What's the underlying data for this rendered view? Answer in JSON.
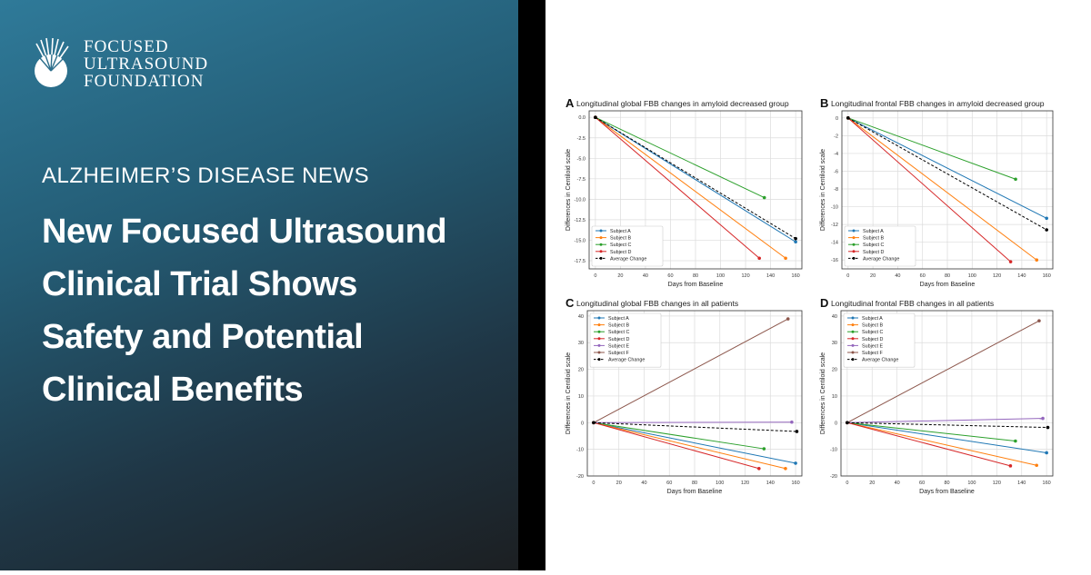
{
  "brand": {
    "line1": "Focused",
    "line2": "Ultrasound",
    "line3": "Foundation"
  },
  "kicker": "ALZHEIMER’S DISEASE NEWS",
  "headline": [
    "New Focused Ultrasound",
    "Clinical Trial Shows",
    "Safety and Potential",
    "Clinical Benefits"
  ],
  "chart_data": [
    {
      "type": "line",
      "panel": "A",
      "title": "Longitudinal global FBB changes in amyloid decreased group",
      "xlabel": "Days from Baseline",
      "ylabel": "Differences in Centiloid scale",
      "xlim": [
        -5,
        165
      ],
      "ylim": [
        -18.5,
        0.8
      ],
      "xticks": [
        0,
        20,
        40,
        60,
        80,
        100,
        120,
        140,
        160
      ],
      "yticks": [
        0.0,
        -2.5,
        -5.0,
        -7.5,
        -10.0,
        -12.5,
        -15.0,
        -17.5
      ],
      "ytick_labels": [
        "0.0",
        "-2.5",
        "-5.0",
        "-7.5",
        "-10.0",
        "-12.5",
        "-15.0",
        "-17.5"
      ],
      "legend": "lower-left",
      "grid": true,
      "series": [
        {
          "name": "Subject A",
          "color": "#1f77b4",
          "x": [
            0,
            160
          ],
          "y": [
            0,
            -15.2
          ],
          "dash": false
        },
        {
          "name": "Subject B",
          "color": "#ff7f0e",
          "x": [
            0,
            152
          ],
          "y": [
            0,
            -17.2
          ],
          "dash": false
        },
        {
          "name": "Subject C",
          "color": "#2ca02c",
          "x": [
            0,
            135
          ],
          "y": [
            0,
            -9.8
          ],
          "dash": false
        },
        {
          "name": "Subject D",
          "color": "#d62728",
          "x": [
            0,
            131
          ],
          "y": [
            0,
            -17.2
          ],
          "dash": false
        },
        {
          "name": "Average Change",
          "color": "#000000",
          "x": [
            0,
            160
          ],
          "y": [
            0,
            -14.8
          ],
          "dash": true
        }
      ]
    },
    {
      "type": "line",
      "panel": "B",
      "title": "Longitudinal frontal FBB changes in amyloid decreased group",
      "xlabel": "Days from Baseline",
      "ylabel": "Differences in Centiloid scale",
      "xlim": [
        -5,
        165
      ],
      "ylim": [
        -17,
        0.8
      ],
      "xticks": [
        0,
        20,
        40,
        60,
        80,
        100,
        120,
        140,
        160
      ],
      "yticks": [
        0,
        -2,
        -4,
        -6,
        -8,
        -10,
        -12,
        -14,
        -16
      ],
      "ytick_labels": [
        "0",
        "-2",
        "-4",
        "-6",
        "-8",
        "-10",
        "-12",
        "-14",
        "-16"
      ],
      "legend": "lower-left",
      "grid": true,
      "series": [
        {
          "name": "Subject A",
          "color": "#1f77b4",
          "x": [
            0,
            160
          ],
          "y": [
            0,
            -11.3
          ],
          "dash": false
        },
        {
          "name": "Subject B",
          "color": "#ff7f0e",
          "x": [
            0,
            152
          ],
          "y": [
            0,
            -16.0
          ],
          "dash": false
        },
        {
          "name": "Subject C",
          "color": "#2ca02c",
          "x": [
            0,
            135
          ],
          "y": [
            0,
            -6.9
          ],
          "dash": false
        },
        {
          "name": "Subject D",
          "color": "#d62728",
          "x": [
            0,
            131
          ],
          "y": [
            0,
            -16.2
          ],
          "dash": false
        },
        {
          "name": "Average Change",
          "color": "#000000",
          "x": [
            0,
            160
          ],
          "y": [
            0,
            -12.6
          ],
          "dash": true
        }
      ]
    },
    {
      "type": "line",
      "panel": "C",
      "title": "Longitudinal global FBB changes in all patients",
      "xlabel": "Days from Baseline",
      "ylabel": "Differences in Centiloid scale",
      "xlim": [
        -5,
        165
      ],
      "ylim": [
        -20,
        42
      ],
      "xticks": [
        0,
        20,
        40,
        60,
        80,
        100,
        120,
        140,
        160
      ],
      "yticks": [
        40,
        30,
        20,
        10,
        0,
        -10,
        -20
      ],
      "ytick_labels": [
        "40",
        "30",
        "20",
        "10",
        "0",
        "-10",
        "-20"
      ],
      "legend": "upper-left",
      "grid": true,
      "series": [
        {
          "name": "Subject A",
          "color": "#1f77b4",
          "x": [
            0,
            160
          ],
          "y": [
            0,
            -15.2
          ],
          "dash": false
        },
        {
          "name": "Subject B",
          "color": "#ff7f0e",
          "x": [
            0,
            152
          ],
          "y": [
            0,
            -17.2
          ],
          "dash": false
        },
        {
          "name": "Subject C",
          "color": "#2ca02c",
          "x": [
            0,
            135
          ],
          "y": [
            0,
            -9.8
          ],
          "dash": false
        },
        {
          "name": "Subject D",
          "color": "#d62728",
          "x": [
            0,
            131
          ],
          "y": [
            0,
            -17.2
          ],
          "dash": false
        },
        {
          "name": "Subject E",
          "color": "#9467bd",
          "x": [
            0,
            157
          ],
          "y": [
            0,
            0.2
          ],
          "dash": false
        },
        {
          "name": "Subject F",
          "color": "#8c564b",
          "x": [
            0,
            154
          ],
          "y": [
            0,
            38.9
          ],
          "dash": false
        },
        {
          "name": "Average Change",
          "color": "#000000",
          "x": [
            0,
            161
          ],
          "y": [
            0,
            -3.3
          ],
          "dash": true
        }
      ]
    },
    {
      "type": "line",
      "panel": "D",
      "title": "Longitudinal frontal FBB changes in all patients",
      "xlabel": "Days from Baseline",
      "ylabel": "Differences in Centiloid scale",
      "xlim": [
        -5,
        165
      ],
      "ylim": [
        -20,
        42
      ],
      "xticks": [
        0,
        20,
        40,
        60,
        80,
        100,
        120,
        140,
        160
      ],
      "yticks": [
        40,
        30,
        20,
        10,
        0,
        -10,
        -20
      ],
      "ytick_labels": [
        "40",
        "30",
        "20",
        "10",
        "0",
        "-10",
        "-20"
      ],
      "legend": "upper-left",
      "grid": true,
      "series": [
        {
          "name": "Subject A",
          "color": "#1f77b4",
          "x": [
            0,
            160
          ],
          "y": [
            0,
            -11.3
          ],
          "dash": false
        },
        {
          "name": "Subject B",
          "color": "#ff7f0e",
          "x": [
            0,
            152
          ],
          "y": [
            0,
            -16.0
          ],
          "dash": false
        },
        {
          "name": "Subject C",
          "color": "#2ca02c",
          "x": [
            0,
            135
          ],
          "y": [
            0,
            -6.9
          ],
          "dash": false
        },
        {
          "name": "Subject D",
          "color": "#d62728",
          "x": [
            0,
            131
          ],
          "y": [
            0,
            -16.2
          ],
          "dash": false
        },
        {
          "name": "Subject E",
          "color": "#9467bd",
          "x": [
            0,
            157
          ],
          "y": [
            0,
            1.6
          ],
          "dash": false
        },
        {
          "name": "Subject F",
          "color": "#8c564b",
          "x": [
            0,
            154
          ],
          "y": [
            0,
            38.2
          ],
          "dash": false
        },
        {
          "name": "Average Change",
          "color": "#000000",
          "x": [
            0,
            161
          ],
          "y": [
            0,
            -1.8
          ],
          "dash": true
        }
      ]
    }
  ]
}
